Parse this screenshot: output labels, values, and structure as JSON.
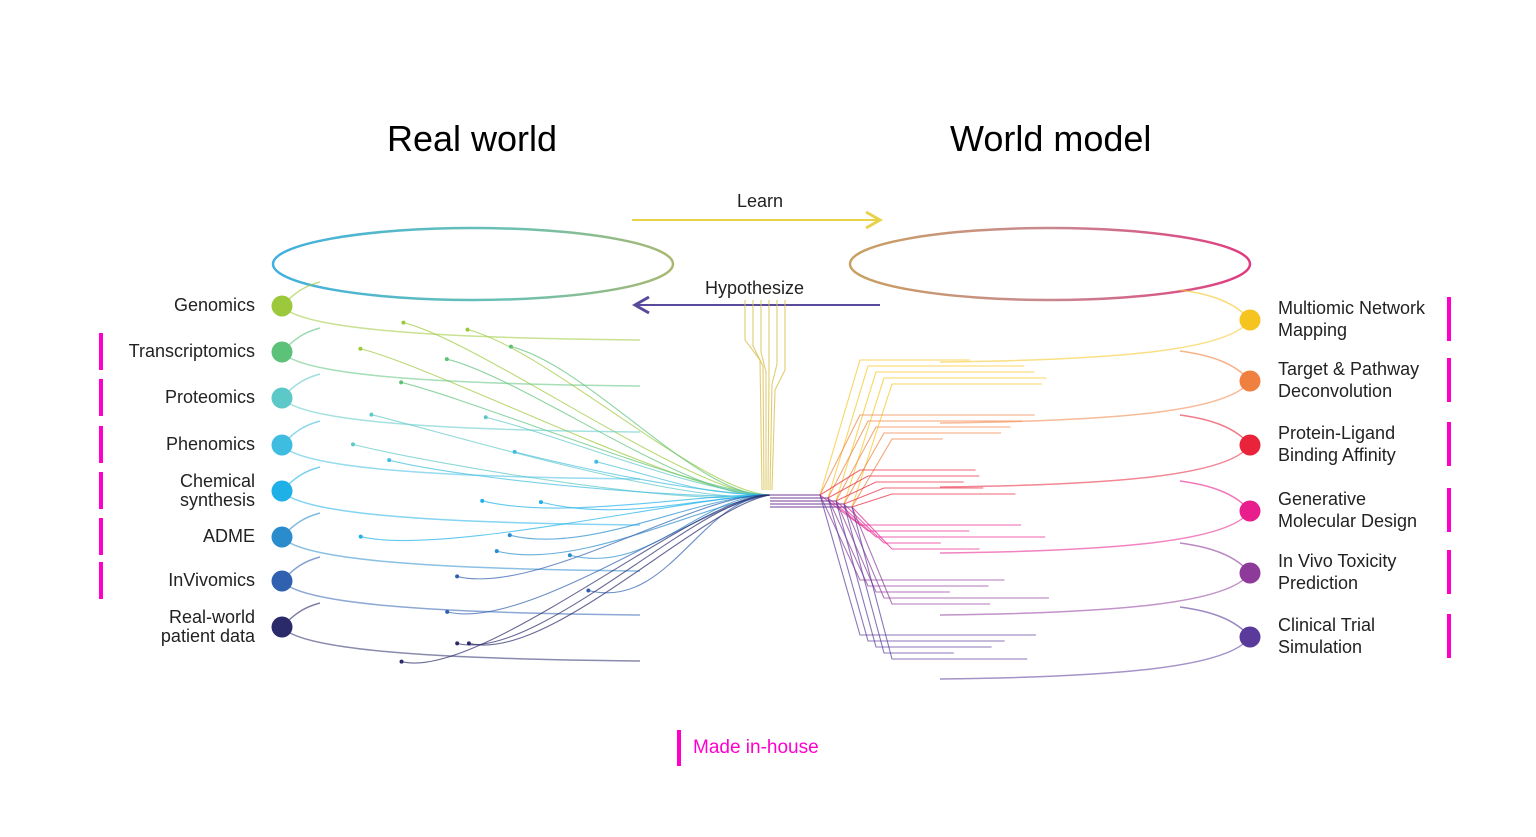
{
  "titles": {
    "left": "Real world",
    "right": "World model"
  },
  "arrows": {
    "learn": "Learn",
    "hypothesize": "Hypothesize",
    "learn_color": "#e8d24a",
    "hypothesize_color": "#5a4a9a"
  },
  "left_nodes": [
    {
      "label": "Genomics",
      "color": "#9cc93b",
      "in_house": false
    },
    {
      "label": "Transcriptomics",
      "color": "#5cc27a",
      "in_house": true
    },
    {
      "label": "Proteomics",
      "color": "#5cc8c8",
      "in_house": true
    },
    {
      "label": "Phenomics",
      "color": "#3fbde0",
      "in_house": true
    },
    {
      "label": "Chemical synthesis",
      "color": "#1fb0e8",
      "in_house": true
    },
    {
      "label": "ADME",
      "color": "#2a8ccc",
      "in_house": true
    },
    {
      "label": "InVivomics",
      "color": "#3060b0",
      "in_house": true
    },
    {
      "label": "Real-world patient data",
      "color": "#2a2a6a",
      "in_house": false
    }
  ],
  "right_nodes": [
    {
      "label": "Multiomic Network Mapping",
      "color": "#f5c421",
      "in_house": true
    },
    {
      "label": "Target & Pathway Deconvolution",
      "color": "#f08040",
      "in_house": true
    },
    {
      "label": "Protein-Ligand Binding Affinity",
      "color": "#e8233a",
      "in_house": true
    },
    {
      "label": "Generative Molecular Design",
      "color": "#e81e8c",
      "in_house": true
    },
    {
      "label": "In Vivo Toxicity Prediction",
      "color": "#8e3a9a",
      "in_house": true
    },
    {
      "label": "Clinical Trial Simulation",
      "color": "#5a3a9a",
      "in_house": true
    }
  ],
  "legend": {
    "label": "Made in-house",
    "color": "#ff00cc"
  }
}
